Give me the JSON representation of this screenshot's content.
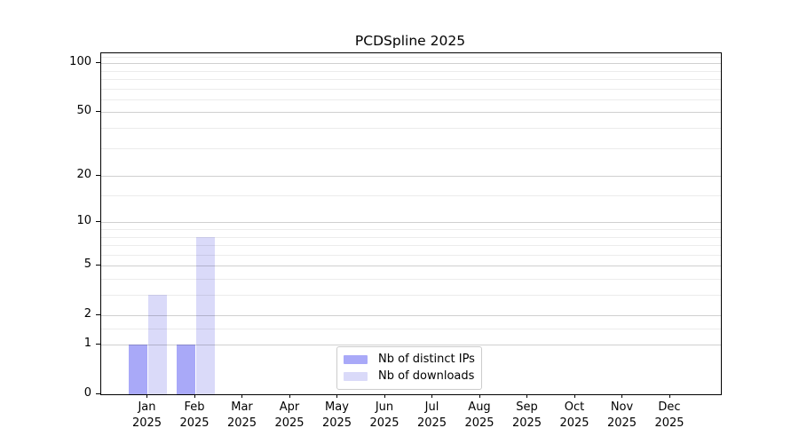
{
  "chart_data": {
    "type": "bar",
    "title": "PCDSpline 2025",
    "categories": [
      "Jan 2025",
      "Feb 2025",
      "Mar 2025",
      "Apr 2025",
      "May 2025",
      "Jun 2025",
      "Jul 2025",
      "Aug 2025",
      "Sep 2025",
      "Oct 2025",
      "Nov 2025",
      "Dec 2025"
    ],
    "series": [
      {
        "name": "Nb of distinct IPs",
        "color": "#a9a9f8",
        "values": [
          1,
          1,
          0,
          0,
          0,
          0,
          0,
          0,
          0,
          0,
          0,
          0
        ]
      },
      {
        "name": "Nb of downloads",
        "color": "#dadaf9",
        "values": [
          3,
          8,
          0,
          0,
          0,
          0,
          0,
          0,
          0,
          0,
          0,
          0
        ]
      }
    ],
    "xlabel": "",
    "ylabel": "",
    "y_axis": {
      "scale": "log1p",
      "tick_values": [
        0,
        1,
        2,
        5,
        10,
        20,
        50,
        100
      ],
      "tick_labels": [
        "0",
        "1",
        "2",
        "5",
        "10",
        "20",
        "50",
        "100"
      ],
      "minor_gridlines": [
        1.5,
        3,
        4,
        6,
        7,
        8,
        9,
        15,
        30,
        40,
        60,
        70,
        80,
        90,
        110
      ],
      "max": 115
    },
    "grid": "horizontal",
    "legend_position": "inside-bottom-center"
  },
  "colors": {
    "background": "#ffffff",
    "spine": "#000000",
    "major_grid": "rgba(0,0,0,0.185)",
    "minor_grid": "rgba(0,0,0,0.075)",
    "legend_border": "#cccccc",
    "bar_distinct_ips": "#a9a9f8",
    "bar_downloads": "#dadaf9"
  }
}
